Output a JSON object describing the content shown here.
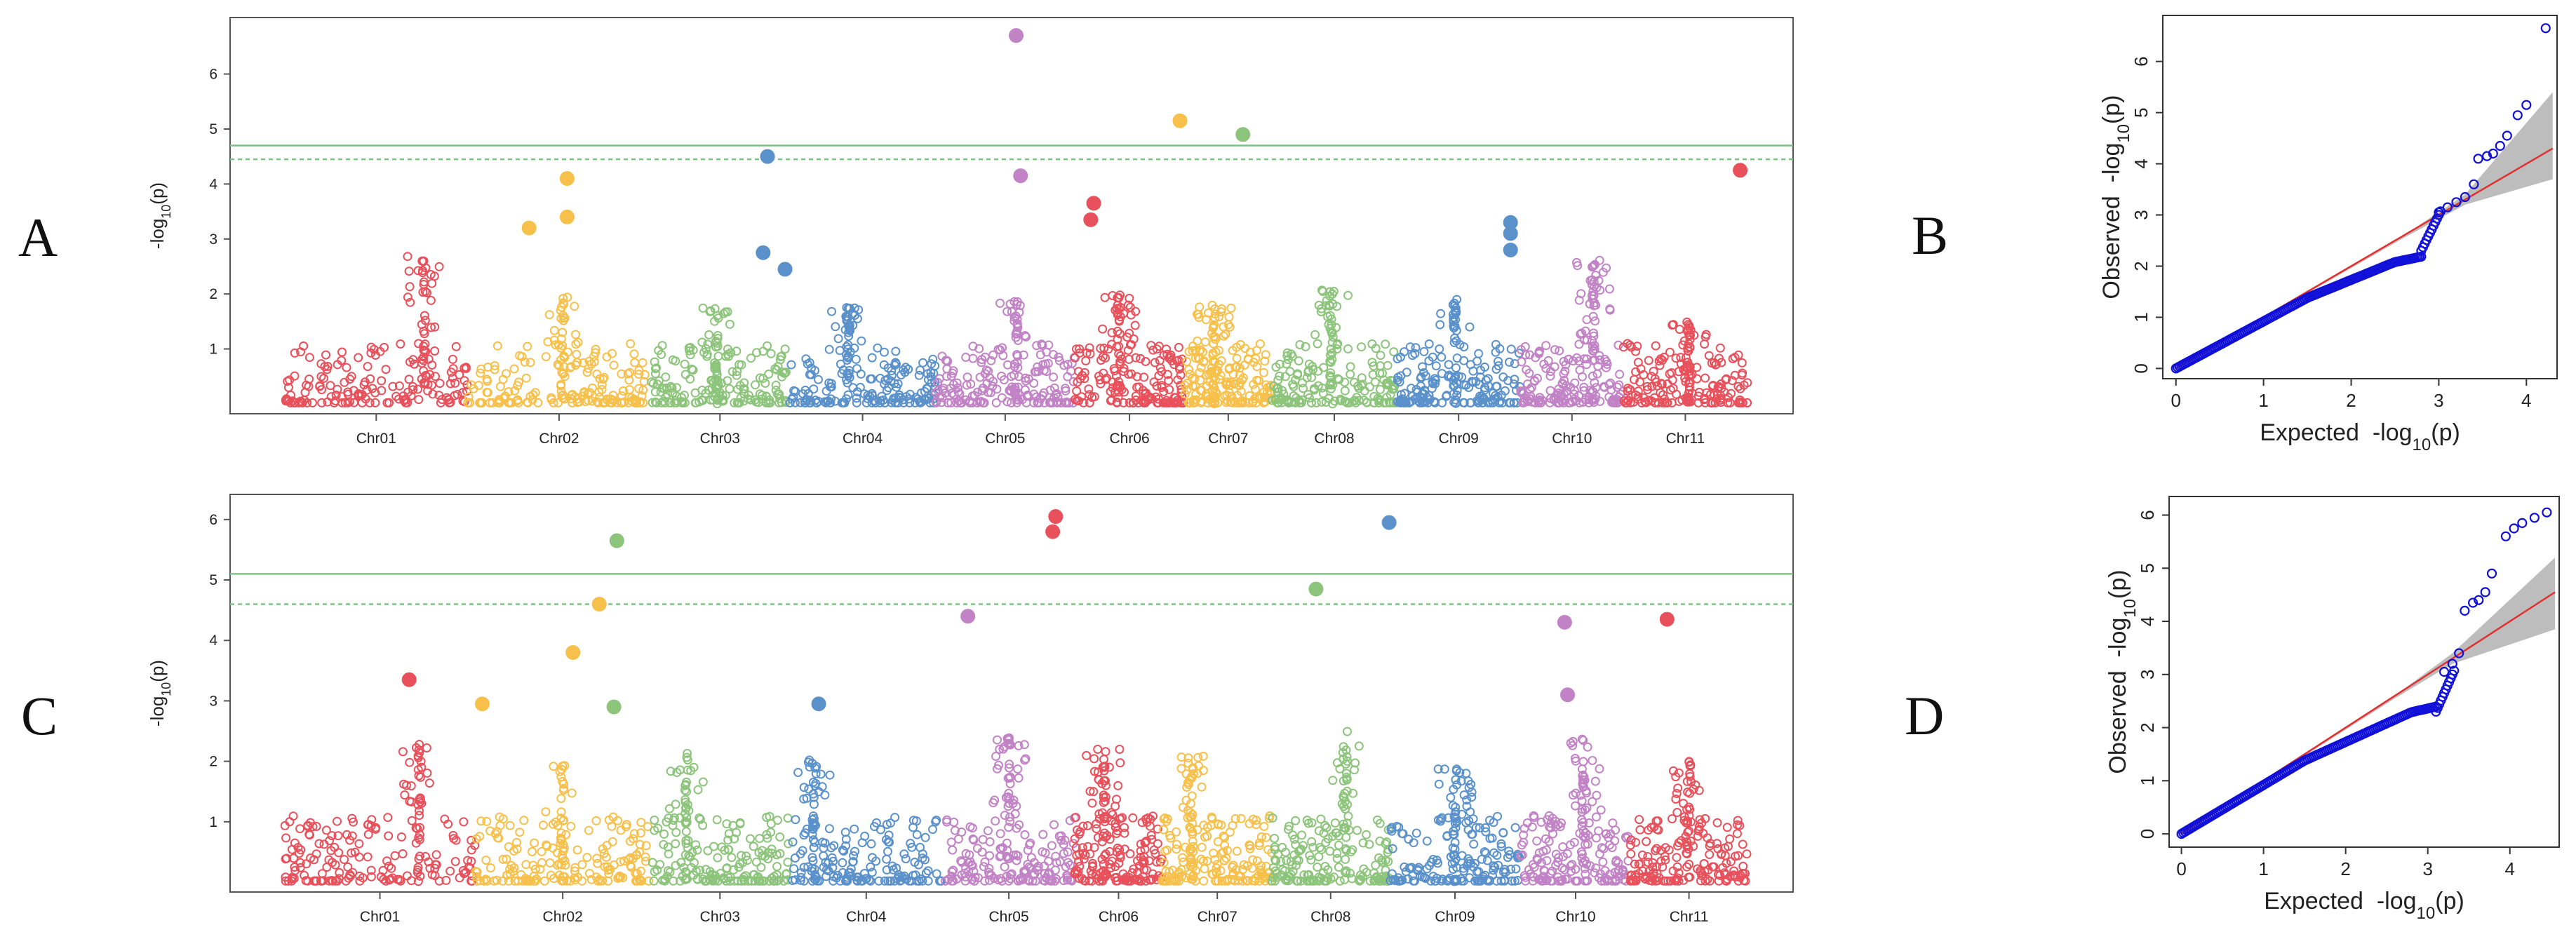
{
  "panels": {
    "A": "A",
    "B": "B",
    "C": "C",
    "D": "D"
  },
  "colors": {
    "chr_palette": [
      "#e8505b",
      "#f7c04a",
      "#8cc47b",
      "#5a91cb",
      "#c182c6"
    ],
    "threshold": "#7cc283",
    "qq_points": "#1010d8",
    "qq_line": "#e03030",
    "qq_band": "#bdbdbd"
  },
  "chart_data": [
    {
      "type": "scatter",
      "subtype": "manhattan",
      "panel": "A",
      "ylabel_main": "-log",
      "ylabel_sub": "10",
      "ylabel_tail": "(p)",
      "ylim": [
        0,
        6.9
      ],
      "yticks": [
        "1",
        "2",
        "3",
        "4",
        "5",
        "6"
      ],
      "thresholds": [
        {
          "value": 4.7,
          "style": "solid"
        },
        {
          "value": 4.45,
          "style": "dashed"
        }
      ],
      "chromosomes": [
        "Chr01",
        "Chr02",
        "Chr03",
        "Chr04",
        "Chr05",
        "Chr06",
        "Chr07",
        "Chr08",
        "Chr09",
        "Chr10",
        "Chr11"
      ],
      "chr_ranges": [
        [
          0.0,
          1.25
        ],
        [
          1.25,
          2.5
        ],
        [
          2.5,
          3.45
        ],
        [
          3.45,
          4.45
        ],
        [
          4.45,
          5.4
        ],
        [
          5.4,
          6.15
        ],
        [
          6.15,
          6.75
        ],
        [
          6.75,
          7.6
        ],
        [
          7.6,
          8.45
        ],
        [
          8.45,
          9.15
        ],
        [
          9.15,
          10.0
        ]
      ],
      "chr_peaks": [
        [
          0.95,
          2.7
        ],
        [
          1.9,
          2.0
        ],
        [
          2.95,
          1.8
        ],
        [
          3.85,
          1.85
        ],
        [
          5.0,
          1.9
        ],
        [
          5.7,
          2.0
        ],
        [
          6.35,
          1.8
        ],
        [
          7.15,
          2.1
        ],
        [
          8.0,
          1.9
        ],
        [
          8.95,
          2.7
        ],
        [
          9.6,
          1.5
        ]
      ],
      "highlights": [
        {
          "chr": "Chr05",
          "x": 5.0,
          "y": 6.7
        },
        {
          "chr": "Chr05",
          "x": 5.03,
          "y": 4.15
        },
        {
          "chr": "Chr07",
          "x": 6.12,
          "y": 5.15
        },
        {
          "chr": "Chr08",
          "x": 6.55,
          "y": 4.9
        },
        {
          "chr": "Chr04",
          "x": 3.3,
          "y": 4.5
        },
        {
          "chr": "Chr02",
          "x": 1.93,
          "y": 4.1
        },
        {
          "chr": "Chr02",
          "x": 1.93,
          "y": 3.4
        },
        {
          "chr": "Chr02",
          "x": 1.67,
          "y": 3.2
        },
        {
          "chr": "Chr06",
          "x": 5.53,
          "y": 3.65
        },
        {
          "chr": "Chr06",
          "x": 5.51,
          "y": 3.35
        },
        {
          "chr": "Chr11",
          "x": 9.95,
          "y": 4.25
        },
        {
          "chr": "Chr04",
          "x": 3.27,
          "y": 2.75
        },
        {
          "chr": "Chr04",
          "x": 3.42,
          "y": 2.45
        },
        {
          "chr": "Chr09",
          "x": 8.38,
          "y": 3.3
        },
        {
          "chr": "Chr09",
          "x": 8.38,
          "y": 3.1
        },
        {
          "chr": "Chr09",
          "x": 8.38,
          "y": 2.8
        }
      ]
    },
    {
      "type": "scatter",
      "subtype": "qq",
      "panel": "B",
      "xlabel": "Expected  -log",
      "ylabel": "Observed  -log",
      "sub": "10",
      "tail": "(p)",
      "xlim": [
        -0.15,
        4.35
      ],
      "ylim": [
        -0.2,
        6.9
      ],
      "xticks": [
        "0",
        "1",
        "2",
        "3",
        "4"
      ],
      "yticks": [
        "0",
        "1",
        "2",
        "3",
        "4",
        "5",
        "6"
      ],
      "tail_points": [
        [
          3.0,
          3.05
        ],
        [
          3.1,
          3.15
        ],
        [
          3.2,
          3.25
        ],
        [
          3.3,
          3.35
        ],
        [
          3.4,
          3.6
        ],
        [
          3.45,
          4.1
        ],
        [
          3.55,
          4.15
        ],
        [
          3.62,
          4.2
        ],
        [
          3.7,
          4.35
        ],
        [
          3.78,
          4.55
        ],
        [
          3.9,
          4.95
        ],
        [
          4.0,
          5.15
        ],
        [
          4.22,
          6.65
        ]
      ],
      "knee": 2.8,
      "band_top": 5.4,
      "band_bottom": 3.7
    },
    {
      "type": "scatter",
      "subtype": "manhattan",
      "panel": "C",
      "ylabel_main": "-log",
      "ylabel_sub": "10",
      "ylabel_tail": "(p)",
      "ylim": [
        0,
        6.3
      ],
      "yticks": [
        "1",
        "2",
        "3",
        "4",
        "5",
        "6"
      ],
      "thresholds": [
        {
          "value": 5.1,
          "style": "solid"
        },
        {
          "value": 4.6,
          "style": "dashed"
        }
      ],
      "chromosomes": [
        "Chr01",
        "Chr02",
        "Chr03",
        "Chr04",
        "Chr05",
        "Chr06",
        "Chr07",
        "Chr08",
        "Chr09",
        "Chr10",
        "Chr11"
      ],
      "chr_ranges": [
        [
          0.0,
          1.3
        ],
        [
          1.3,
          2.5
        ],
        [
          2.5,
          3.45
        ],
        [
          3.45,
          4.5
        ],
        [
          4.5,
          5.4
        ],
        [
          5.4,
          6.0
        ],
        [
          6.0,
          6.75
        ],
        [
          6.75,
          7.55
        ],
        [
          7.55,
          8.45
        ],
        [
          8.45,
          9.2
        ],
        [
          9.2,
          10.0
        ]
      ],
      "chr_peaks": [
        [
          0.92,
          2.3
        ],
        [
          1.9,
          2.0
        ],
        [
          2.75,
          2.2
        ],
        [
          3.62,
          2.1
        ],
        [
          4.95,
          2.4
        ],
        [
          5.6,
          2.2
        ],
        [
          6.2,
          2.1
        ],
        [
          7.25,
          2.5
        ],
        [
          8.0,
          1.9
        ],
        [
          8.88,
          2.4
        ],
        [
          9.6,
          2.0
        ]
      ],
      "highlights": [
        {
          "chr": "Chr06",
          "x": 5.27,
          "y": 6.05
        },
        {
          "chr": "Chr06",
          "x": 5.25,
          "y": 5.8
        },
        {
          "chr": "Chr09",
          "x": 7.55,
          "y": 5.95
        },
        {
          "chr": "Chr03",
          "x": 2.27,
          "y": 5.65
        },
        {
          "chr": "Chr08",
          "x": 7.05,
          "y": 4.85
        },
        {
          "chr": "Chr02",
          "x": 2.15,
          "y": 4.6
        },
        {
          "chr": "Chr05",
          "x": 4.67,
          "y": 4.4
        },
        {
          "chr": "Chr10",
          "x": 8.75,
          "y": 4.3
        },
        {
          "chr": "Chr11",
          "x": 9.45,
          "y": 4.35
        },
        {
          "chr": "Chr02",
          "x": 1.97,
          "y": 3.8
        },
        {
          "chr": "Chr01",
          "x": 0.85,
          "y": 3.35
        },
        {
          "chr": "Chr10",
          "x": 8.77,
          "y": 3.1
        },
        {
          "chr": "Chr04",
          "x": 3.65,
          "y": 2.95
        },
        {
          "chr": "Chr02",
          "x": 1.35,
          "y": 2.95
        },
        {
          "chr": "Chr03",
          "x": 2.25,
          "y": 2.9
        }
      ]
    },
    {
      "type": "scatter",
      "subtype": "qq",
      "panel": "D",
      "xlabel": "Expected  -log",
      "ylabel": "Observed  -log",
      "sub": "10",
      "tail": "(p)",
      "xlim": [
        -0.15,
        4.6
      ],
      "ylim": [
        -0.25,
        6.35
      ],
      "xticks": [
        "0",
        "1",
        "2",
        "3",
        "4"
      ],
      "yticks": [
        "0",
        "1",
        "2",
        "3",
        "4",
        "5",
        "6"
      ],
      "tail_points": [
        [
          3.2,
          3.05
        ],
        [
          3.3,
          3.2
        ],
        [
          3.38,
          3.4
        ],
        [
          3.45,
          4.2
        ],
        [
          3.55,
          4.35
        ],
        [
          3.62,
          4.4
        ],
        [
          3.7,
          4.55
        ],
        [
          3.78,
          4.9
        ],
        [
          3.95,
          5.6
        ],
        [
          4.05,
          5.75
        ],
        [
          4.15,
          5.85
        ],
        [
          4.3,
          5.95
        ],
        [
          4.45,
          6.05
        ]
      ],
      "knee": 3.1,
      "band_top": 5.2,
      "band_bottom": 3.85
    }
  ]
}
